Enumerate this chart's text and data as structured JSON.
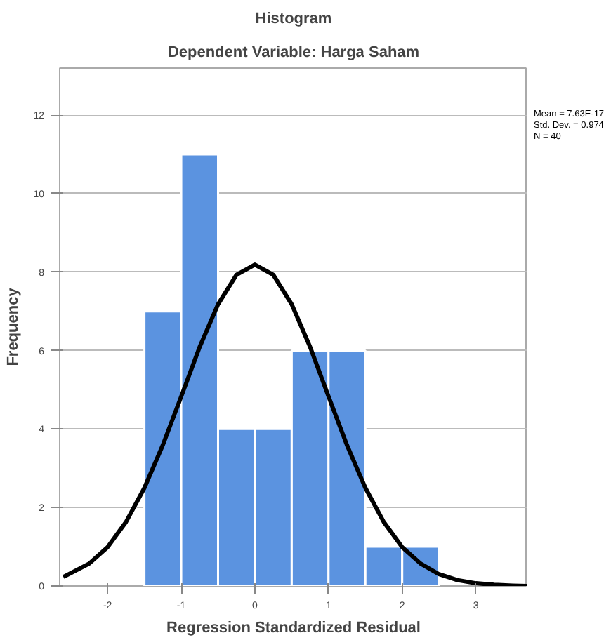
{
  "chart_data": {
    "type": "histogram",
    "title": "Histogram",
    "subtitle": "Dependent Variable: Harga Saham",
    "xlabel": "Regression Standardized Residual",
    "ylabel": "Frequency",
    "bins": [
      -1.5,
      -1.0,
      -0.5,
      0.0,
      0.5,
      1.0,
      1.5,
      2.0,
      2.5
    ],
    "values": [
      7,
      11,
      4,
      4,
      6,
      6,
      1,
      1
    ],
    "color": "#5b93e0",
    "series": [
      {
        "type": "line",
        "color": "#000000",
        "x": [
          -2.6,
          -2.25,
          -2,
          -1.75,
          -1.5,
          -1.25,
          -1,
          -0.75,
          -0.5,
          -0.25,
          0,
          0.25,
          0.5,
          0.75,
          1,
          1.25,
          1.5,
          1.75,
          2,
          2.25,
          2.5,
          2.75,
          3,
          3.25,
          3.5,
          3.7
        ],
        "values": [
          0.23,
          0.57,
          0.99,
          1.63,
          2.5,
          3.59,
          4.83,
          6.09,
          7.18,
          7.93,
          8.19,
          7.93,
          7.18,
          6.09,
          4.83,
          3.59,
          2.5,
          1.63,
          0.99,
          0.57,
          0.3,
          0.15,
          0.07,
          0.03,
          0.01,
          0.0
        ]
      }
    ],
    "xlim": [
      -2.65,
      3.7
    ],
    "ylim": [
      0,
      13.2
    ],
    "xticks": [
      -2,
      -1,
      0,
      1,
      2,
      3
    ],
    "yticks": [
      0,
      2,
      4,
      6,
      8,
      10,
      12
    ],
    "grid": "y",
    "annotations": [
      "Mean = 7.63E-17",
      "Std. Dev. = 0.974",
      "N = 40"
    ]
  }
}
